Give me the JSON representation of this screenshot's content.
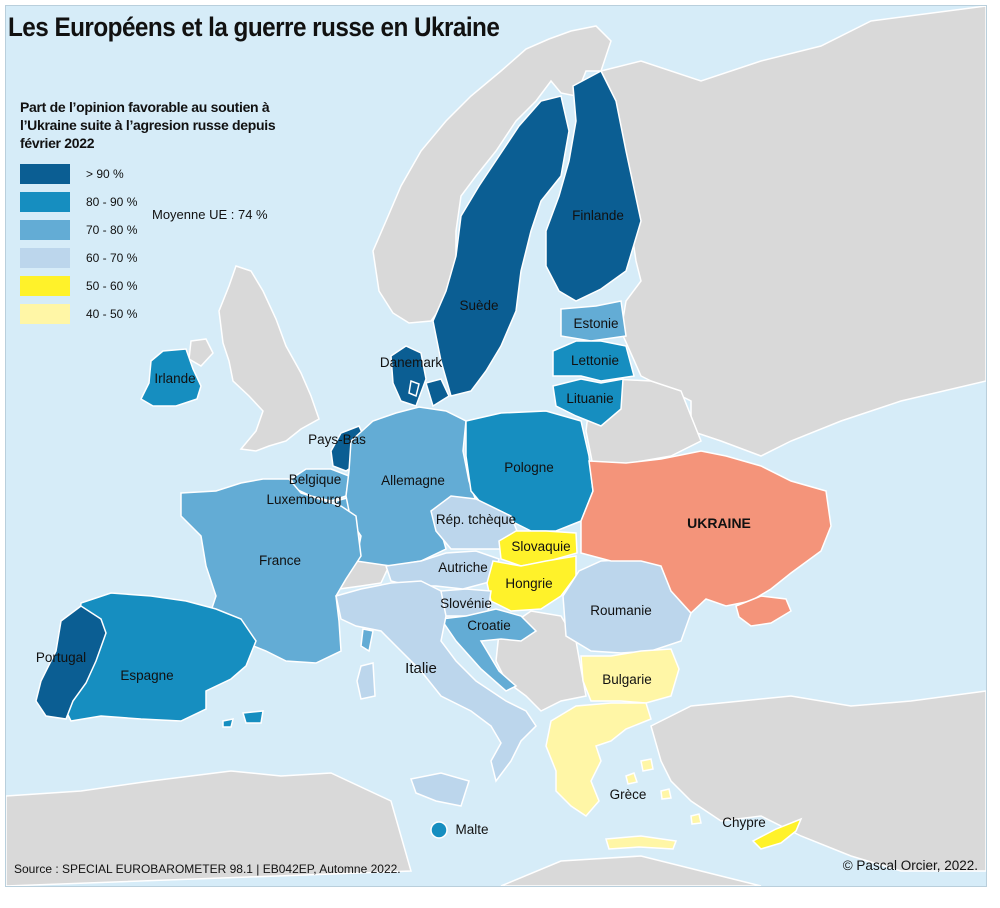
{
  "title": "Les Européens et la guerre russe en Ukraine",
  "legend": {
    "title": "Part de l’opinion favorable au soutien à l’Ukraine suite à l’agresion russe depuis février 2022",
    "classes": [
      {
        "label": "> 90 %",
        "color": "#0b5e93"
      },
      {
        "label": "80 - 90 %",
        "color": "#168ec0"
      },
      {
        "label": "70 - 80 %",
        "color": "#63acd5"
      },
      {
        "label": "60 - 70 %",
        "color": "#bcd6ec"
      },
      {
        "label": "50 - 60 %",
        "color": "#fff22a"
      },
      {
        "label": "40 - 50 %",
        "color": "#fff6a6"
      }
    ],
    "average": "Moyenne UE : 74 %"
  },
  "colors": {
    "sea": "#d6ecf8",
    "non_eu_land": "#d9d9d9",
    "border": "#ffffff",
    "ukraine": "#f4947a"
  },
  "countries": {
    "suede": "Suède",
    "finlande": "Finlande",
    "estonie": "Estonie",
    "lettonie": "Lettonie",
    "lituanie": "Lituanie",
    "danemark": "Danemark",
    "irlande": "Irlande",
    "pays_bas": "Pays-Bas",
    "belgique": "Belgique",
    "luxembourg": "Luxembourg",
    "allemagne": "Allemagne",
    "pologne": "Pologne",
    "france": "France",
    "rep_tcheque": "Rép. tchèque",
    "slovaquie": "Slovaquie",
    "autriche": "Autriche",
    "hongrie": "Hongrie",
    "slovenie": "Slovénie",
    "croatie": "Croatie",
    "roumanie": "Roumanie",
    "bulgarie": "Bulgarie",
    "italie": "Italie",
    "portugal": "Portugal",
    "espagne": "Espagne",
    "grece": "Grèce",
    "chypre": "Chypre",
    "malte": "Malte",
    "ukraine": "UKRAINE"
  },
  "source": "Source : SPECIAL EUROBAROMETER 98.1 | EB042EP, Automne 2022.",
  "copyright": "© Pascal Orcier, 2022."
}
